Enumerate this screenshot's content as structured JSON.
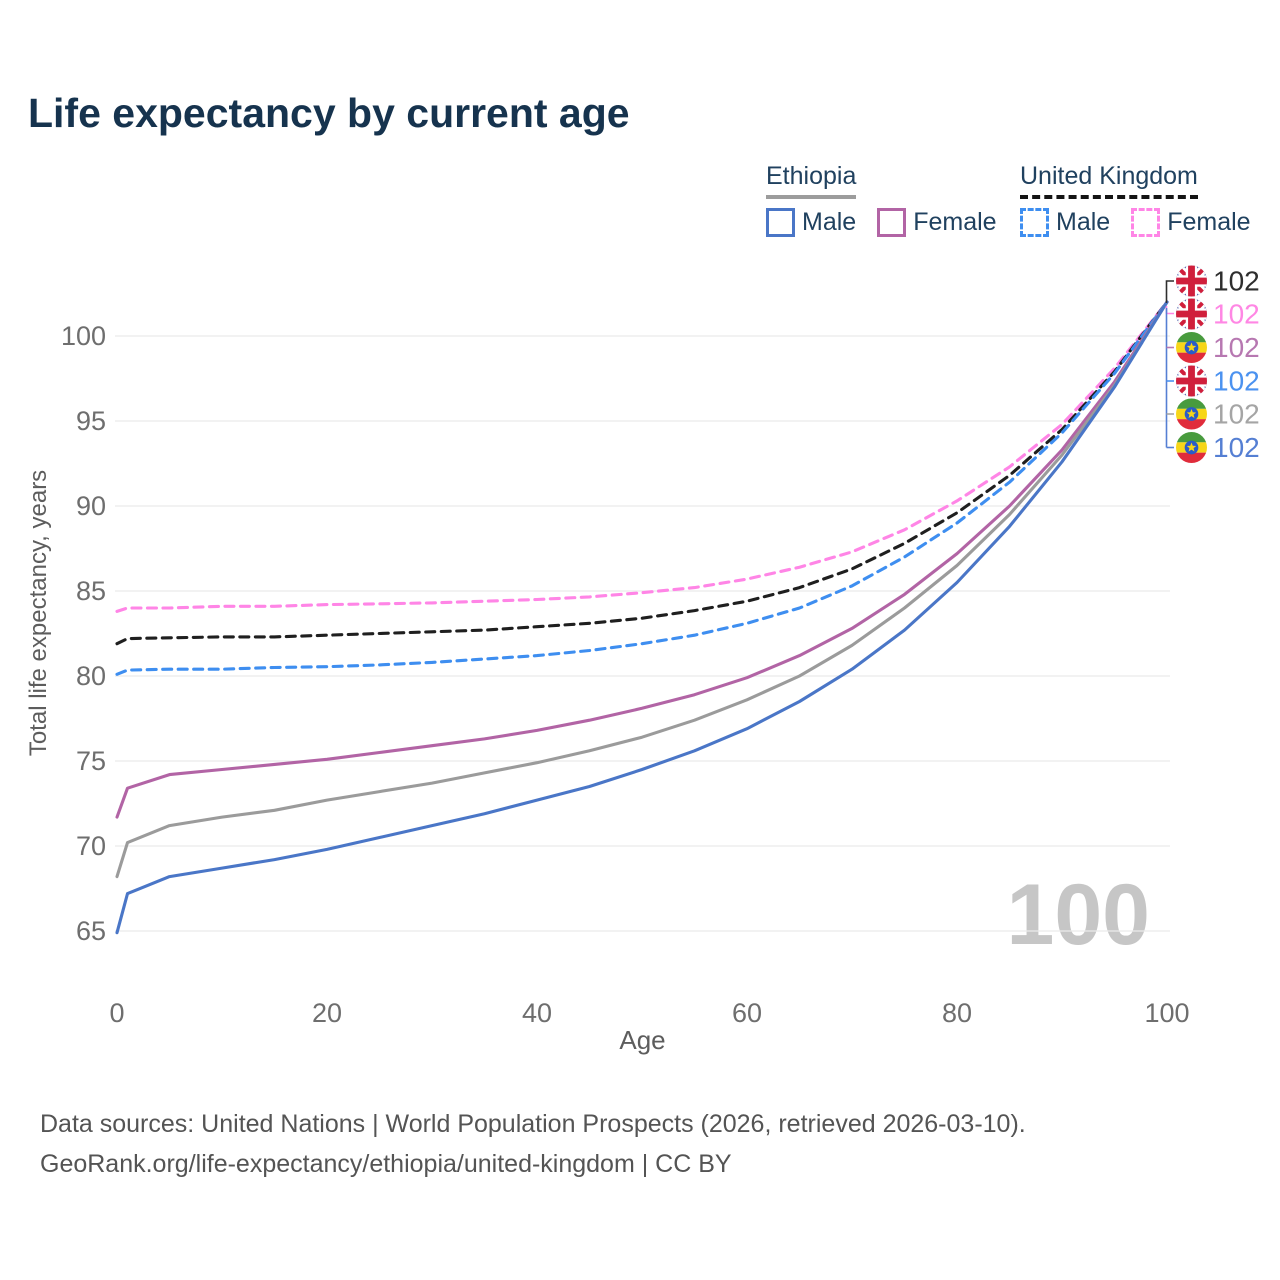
{
  "title": "Life expectancy by current age",
  "legend": {
    "groups": [
      {
        "id": "ethiopia",
        "label": "Ethiopia",
        "underline_style": "solid",
        "underline_color": "#9c9c9c",
        "items": [
          {
            "label": "Male",
            "color": "#4a76c7",
            "dash": false
          },
          {
            "label": "Female",
            "color": "#b264a5",
            "dash": false
          }
        ]
      },
      {
        "id": "uk",
        "label": "United Kingdom",
        "underline_style": "dashed",
        "underline_color": "#141414",
        "items": [
          {
            "label": "Male",
            "color": "#3e8ef0",
            "dash": true
          },
          {
            "label": "Female",
            "color": "#ff85e6",
            "dash": true
          }
        ]
      }
    ]
  },
  "chart_data": {
    "type": "line",
    "title": "Life expectancy by current age",
    "xlabel": "Age",
    "ylabel": "Total life expectancy, years",
    "xticks": [
      0,
      20,
      40,
      60,
      80,
      100
    ],
    "yticks": [
      65,
      70,
      75,
      80,
      85,
      90,
      95,
      100
    ],
    "xlim": [
      0,
      100
    ],
    "ylim": [
      64,
      103.5
    ],
    "grid": true,
    "legend_position": "top-right",
    "watermark": "100",
    "x": [
      0,
      1,
      5,
      10,
      15,
      20,
      25,
      30,
      35,
      40,
      45,
      50,
      55,
      60,
      65,
      70,
      75,
      80,
      85,
      90,
      95,
      100
    ],
    "series": [
      {
        "id": "uk-female",
        "name": "United Kingdom Female",
        "color": "#ff85e6",
        "dash": true,
        "values": [
          83.8,
          84.0,
          84.0,
          84.1,
          84.1,
          84.2,
          84.25,
          84.3,
          84.4,
          84.5,
          84.65,
          84.9,
          85.2,
          85.7,
          86.4,
          87.3,
          88.6,
          90.3,
          92.3,
          94.8,
          98.1,
          102
        ]
      },
      {
        "id": "uk-both",
        "name": "United Kingdom",
        "color": "#1f1f1f",
        "dash": true,
        "values": [
          81.9,
          82.2,
          82.25,
          82.3,
          82.3,
          82.4,
          82.5,
          82.6,
          82.7,
          82.9,
          83.1,
          83.4,
          83.85,
          84.4,
          85.2,
          86.3,
          87.8,
          89.6,
          91.8,
          94.5,
          97.9,
          102
        ]
      },
      {
        "id": "uk-male",
        "name": "United Kingdom Male",
        "color": "#3e8ef0",
        "dash": true,
        "values": [
          80.1,
          80.35,
          80.4,
          80.4,
          80.5,
          80.55,
          80.65,
          80.8,
          81.0,
          81.2,
          81.5,
          81.9,
          82.4,
          83.1,
          84.0,
          85.3,
          87.0,
          89.0,
          91.4,
          94.3,
          97.8,
          102
        ]
      },
      {
        "id": "ethiopia-female",
        "name": "Ethiopia Female",
        "color": "#b264a5",
        "dash": false,
        "values": [
          71.7,
          73.4,
          74.2,
          74.5,
          74.8,
          75.1,
          75.5,
          75.9,
          76.3,
          76.8,
          77.4,
          78.1,
          78.9,
          79.9,
          81.2,
          82.8,
          84.8,
          87.2,
          90.0,
          93.3,
          97.3,
          102
        ]
      },
      {
        "id": "ethiopia-both",
        "name": "Ethiopia",
        "color": "#9b9b9b",
        "dash": false,
        "values": [
          68.2,
          70.2,
          71.2,
          71.7,
          72.1,
          72.7,
          73.2,
          73.7,
          74.3,
          74.9,
          75.6,
          76.4,
          77.4,
          78.6,
          80.0,
          81.8,
          84.0,
          86.5,
          89.5,
          93.0,
          97.1,
          102
        ]
      },
      {
        "id": "ethiopia-male",
        "name": "Ethiopia Male",
        "color": "#4a76c7",
        "dash": false,
        "values": [
          64.9,
          67.2,
          68.2,
          68.7,
          69.2,
          69.8,
          70.5,
          71.2,
          71.9,
          72.7,
          73.5,
          74.5,
          75.6,
          76.9,
          78.5,
          80.4,
          82.7,
          85.5,
          88.8,
          92.6,
          97.0,
          102
        ]
      }
    ],
    "end_labels": [
      {
        "flag": "uk",
        "series": "uk-both",
        "value": "102",
        "color": "#2e2e2e"
      },
      {
        "flag": "uk",
        "series": "uk-female",
        "value": "102",
        "color": "#ff87e4"
      },
      {
        "flag": "ethiopia",
        "series": "ethiopia-female",
        "value": "102",
        "color": "#b778b1"
      },
      {
        "flag": "uk",
        "series": "uk-male",
        "value": "102",
        "color": "#4b92f0"
      },
      {
        "flag": "ethiopia",
        "series": "ethiopia-both",
        "value": "102",
        "color": "#a5a5a5"
      },
      {
        "flag": "ethiopia",
        "series": "ethiopia-male",
        "value": "102",
        "color": "#557fd3"
      }
    ],
    "colors": {
      "grid": "#ebebeb",
      "tick_label": "#6e6e6e",
      "axis_title": "#5d5d5d",
      "watermark": "#c6c6c6",
      "uk_flag_blue": "#2c3f99",
      "uk_flag_red": "#d01f3c",
      "ethiopia_green": "#489b3e",
      "ethiopia_yellow": "#f7d618",
      "ethiopia_red": "#e02c3b",
      "ethiopia_disc_blue": "#2a5cc8"
    }
  },
  "footer": {
    "line1": "Data sources: United Nations | World Population Prospects (2026, retrieved 2026-03-10).",
    "line2": "GeoRank.org/life-expectancy/ethiopia/united-kingdom | CC BY"
  }
}
